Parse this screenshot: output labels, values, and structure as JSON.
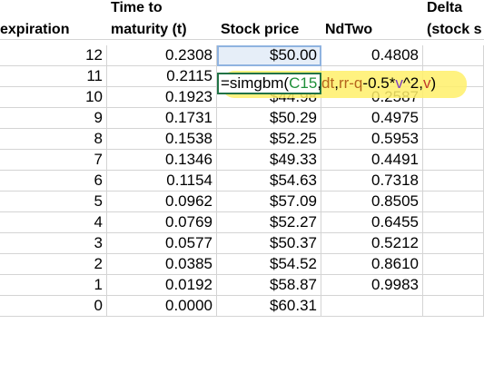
{
  "headers": {
    "expiration": "expiration",
    "time_line1": "Time to",
    "time_line2": "maturity (t)",
    "stock_price": "Stock price",
    "ndtwo": "NdTwo",
    "delta_line1": "Delta",
    "delta_line2": "(stock s"
  },
  "rows": [
    {
      "expiration": "12",
      "time": "0.2308",
      "price": "$50.00",
      "ndtwo": "0.4808"
    },
    {
      "expiration": "11",
      "time": "0.2115",
      "price": "",
      "ndtwo": ""
    },
    {
      "expiration": "10",
      "time": "0.1923",
      "price": "$44.98",
      "ndtwo": "0.2587"
    },
    {
      "expiration": "9",
      "time": "0.1731",
      "price": "$50.29",
      "ndtwo": "0.4975"
    },
    {
      "expiration": "8",
      "time": "0.1538",
      "price": "$52.25",
      "ndtwo": "0.5953"
    },
    {
      "expiration": "7",
      "time": "0.1346",
      "price": "$49.33",
      "ndtwo": "0.4491"
    },
    {
      "expiration": "6",
      "time": "0.1154",
      "price": "$54.63",
      "ndtwo": "0.7318"
    },
    {
      "expiration": "5",
      "time": "0.0962",
      "price": "$57.09",
      "ndtwo": "0.8505"
    },
    {
      "expiration": "4",
      "time": "0.0769",
      "price": "$52.27",
      "ndtwo": "0.6455"
    },
    {
      "expiration": "3",
      "time": "0.0577",
      "price": "$50.37",
      "ndtwo": "0.5212"
    },
    {
      "expiration": "2",
      "time": "0.0385",
      "price": "$54.52",
      "ndtwo": "0.8610"
    },
    {
      "expiration": "1",
      "time": "0.0192",
      "price": "$58.87",
      "ndtwo": "0.9983"
    },
    {
      "expiration": "0",
      "time": "0.0000",
      "price": "$60.31",
      "ndtwo": ""
    }
  ],
  "formula": {
    "eq": "=simgbm(",
    "arg1": "C15",
    "sep1": ",",
    "arg2": "dt",
    "sep2": ",",
    "arg3": "rr-q",
    "arg4": "-0.5*",
    "arg5": "v",
    "arg6": "^2,",
    "arg7": "v",
    "close": ")"
  },
  "colors": {
    "highlight": "#fff06a",
    "selected_fill": "#e6eef8",
    "edit_border": "#217346"
  }
}
